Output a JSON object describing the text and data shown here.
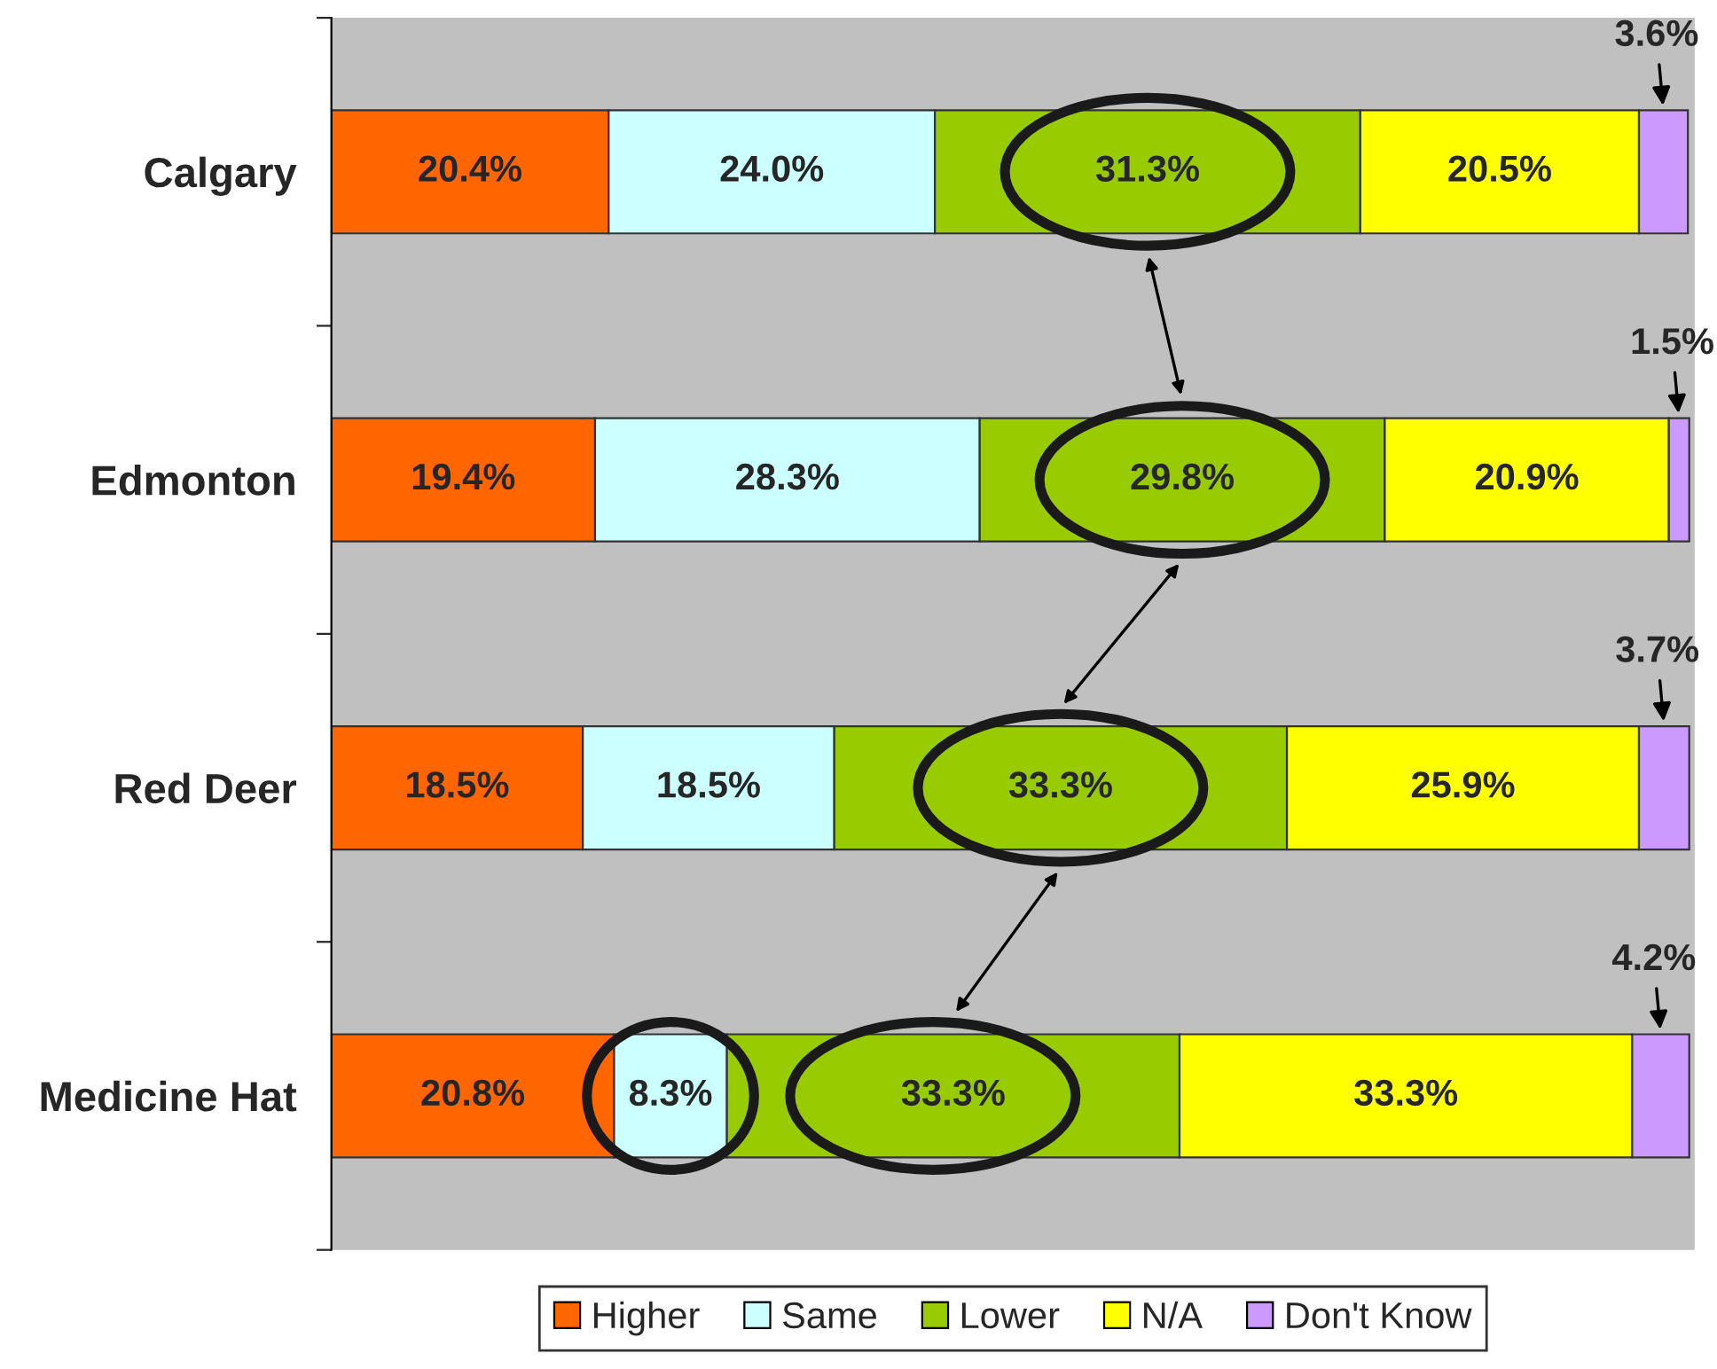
{
  "chart_data": {
    "type": "bar",
    "orientation": "horizontal",
    "stacked": true,
    "legend": "bottom",
    "categories": [
      "Calgary",
      "Edmonton",
      "Red Deer",
      "Medicine Hat"
    ],
    "series": [
      {
        "name": "Higher",
        "color": "#ff6600",
        "values": [
          20.4,
          19.4,
          18.5,
          20.8
        ],
        "value_labels": [
          "20.4%",
          "19.4%",
          "18.5%",
          "20.8%"
        ]
      },
      {
        "name": "Same",
        "color": "#ccffff",
        "values": [
          24.0,
          28.3,
          18.5,
          8.3
        ],
        "value_labels": [
          "24.0%",
          "28.3%",
          "18.5%",
          "8.3%"
        ]
      },
      {
        "name": "Lower",
        "color": "#99cc00",
        "values": [
          31.3,
          29.8,
          33.3,
          33.3
        ],
        "value_labels": [
          "31.3%",
          "29.8%",
          "33.3%",
          "33.3%"
        ]
      },
      {
        "name": "N/A",
        "color": "#ffff00",
        "values": [
          20.5,
          20.9,
          25.9,
          33.3
        ],
        "value_labels": [
          "20.5%",
          "20.9%",
          "25.9%",
          "33.3%"
        ]
      },
      {
        "name": "Don't Know",
        "color": "#cc99ff",
        "values": [
          3.6,
          1.5,
          3.7,
          4.2
        ],
        "value_labels": [
          "3.6%",
          "1.5%",
          "3.7%",
          "4.2%"
        ]
      }
    ]
  }
}
